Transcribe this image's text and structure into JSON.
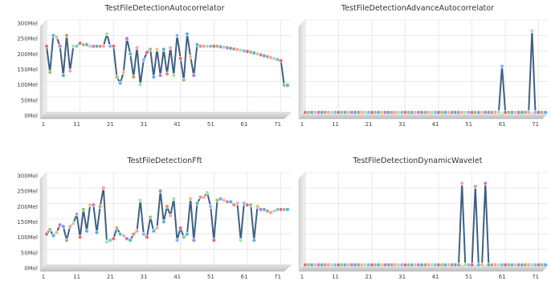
{
  "point_palette": [
    "#e06c75",
    "#98c379",
    "#61afef",
    "#e5c07b",
    "#c678dd",
    "#56b6c2",
    "#d19a66",
    "#f5a0b4",
    "#a6e3a1",
    "#89b4fa"
  ],
  "line_color": "#3f6182",
  "chart_data": [
    {
      "type": "line",
      "title": "TestFileDetectionAutocorrelator",
      "x_ticks": [
        "1",
        "11",
        "21",
        "31",
        "41",
        "51",
        "61",
        "71"
      ],
      "y_ticks": [
        "0Mel",
        "50Mel",
        "100Mel",
        "150Mel",
        "200Mel",
        "250Mel",
        "300Mel"
      ],
      "xlim": [
        1,
        73
      ],
      "ylim": [
        0,
        300
      ],
      "grid": true,
      "values": [
        215,
        130,
        250,
        245,
        215,
        120,
        250,
        135,
        215,
        215,
        225,
        220,
        220,
        215,
        215,
        215,
        215,
        215,
        255,
        215,
        215,
        115,
        95,
        130,
        240,
        190,
        115,
        210,
        90,
        170,
        195,
        205,
        115,
        205,
        120,
        205,
        125,
        210,
        120,
        250,
        175,
        105,
        255,
        180,
        120,
        220,
        215,
        215,
        215,
        215,
        215,
        215,
        213,
        212,
        210,
        208,
        206,
        204,
        202,
        200,
        198,
        196,
        193,
        190,
        187,
        184,
        181,
        178,
        175,
        172,
        168,
        88,
        88
      ]
    },
    {
      "type": "line",
      "title": "TestFileDetectionAdvanceAutocorrelator",
      "x_ticks": [
        "1",
        "11",
        "21",
        "31",
        "41",
        "51",
        "61",
        "71"
      ],
      "y_ticks": [],
      "xlim": [
        1,
        73
      ],
      "ylim": [
        0,
        300
      ],
      "grid": true,
      "values": [
        0,
        0,
        0,
        0,
        0,
        0,
        0,
        0,
        0,
        0,
        0,
        0,
        0,
        0,
        0,
        0,
        0,
        0,
        0,
        0,
        0,
        0,
        0,
        0,
        0,
        0,
        0,
        0,
        0,
        0,
        0,
        0,
        0,
        0,
        0,
        0,
        0,
        0,
        0,
        0,
        0,
        0,
        0,
        0,
        0,
        0,
        0,
        0,
        0,
        0,
        0,
        0,
        0,
        0,
        0,
        0,
        0,
        0,
        0,
        150,
        0,
        0,
        0,
        0,
        0,
        0,
        0,
        0,
        265,
        0,
        0,
        0,
        0
      ]
    },
    {
      "type": "line",
      "title": "TestFileDetectionFft",
      "x_ticks": [
        "1",
        "11",
        "21",
        "31",
        "41",
        "51",
        "61",
        "71"
      ],
      "y_ticks": [
        "0Mel",
        "50Mel",
        "100Mel",
        "150Mel",
        "200Mel",
        "250Mel",
        "300Mel"
      ],
      "xlim": [
        1,
        73
      ],
      "ylim": [
        0,
        300
      ],
      "grid": true,
      "values": [
        100,
        115,
        95,
        105,
        130,
        125,
        80,
        125,
        135,
        165,
        90,
        180,
        110,
        195,
        195,
        105,
        190,
        250,
        75,
        80,
        85,
        120,
        100,
        95,
        85,
        80,
        100,
        110,
        210,
        100,
        90,
        155,
        110,
        120,
        240,
        140,
        190,
        160,
        215,
        80,
        120,
        90,
        100,
        215,
        80,
        200,
        220,
        220,
        235,
        190,
        80,
        210,
        215,
        210,
        205,
        205,
        195,
        200,
        80,
        200,
        195,
        195,
        80,
        190,
        180,
        180,
        175,
        170,
        175,
        180,
        180,
        180,
        180
      ]
    },
    {
      "type": "line",
      "title": "TestFileDetectionDynamicWavelet",
      "x_ticks": [
        "1",
        "11",
        "21",
        "31",
        "41",
        "51",
        "61",
        "71"
      ],
      "y_ticks": [],
      "xlim": [
        1,
        73
      ],
      "ylim": [
        0,
        300
      ],
      "grid": true,
      "values": [
        0,
        0,
        0,
        0,
        0,
        0,
        0,
        0,
        0,
        0,
        0,
        0,
        0,
        0,
        0,
        0,
        0,
        0,
        0,
        0,
        0,
        0,
        0,
        0,
        0,
        0,
        0,
        0,
        0,
        0,
        0,
        0,
        0,
        0,
        0,
        0,
        0,
        0,
        0,
        0,
        0,
        0,
        0,
        0,
        0,
        0,
        0,
        265,
        0,
        0,
        0,
        255,
        0,
        0,
        265,
        0,
        0,
        0,
        0,
        0,
        0,
        0,
        0,
        0,
        0,
        0,
        0,
        0,
        0,
        0,
        0,
        0,
        0
      ]
    }
  ]
}
